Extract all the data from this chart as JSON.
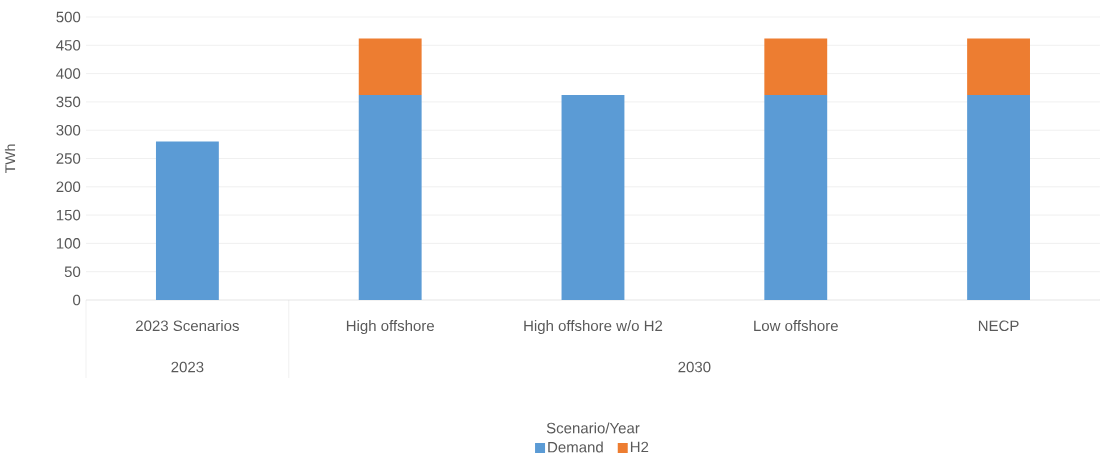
{
  "chart_data": {
    "type": "bar",
    "stacked": true,
    "ylabel": "TWh",
    "legend_title": "Scenario/Year",
    "categories": [
      "2023 Scenarios",
      "High offshore",
      "High offshore w/o H2",
      "Low offshore",
      "NECP"
    ],
    "series": [
      {
        "name": "Demand",
        "color": "#5b9bd5",
        "values": [
          280,
          362,
          362,
          362,
          362
        ]
      },
      {
        "name": "H2",
        "color": "#ed7d31",
        "values": [
          null,
          100,
          null,
          100,
          100
        ]
      }
    ],
    "annotations": [
      "2023",
      "2030"
    ],
    "ylim": [
      0,
      500
    ],
    "yticks": [
      0,
      50,
      100,
      150,
      200,
      250,
      300,
      350,
      400,
      450,
      500
    ],
    "grid": "y",
    "legend": "bottom"
  }
}
